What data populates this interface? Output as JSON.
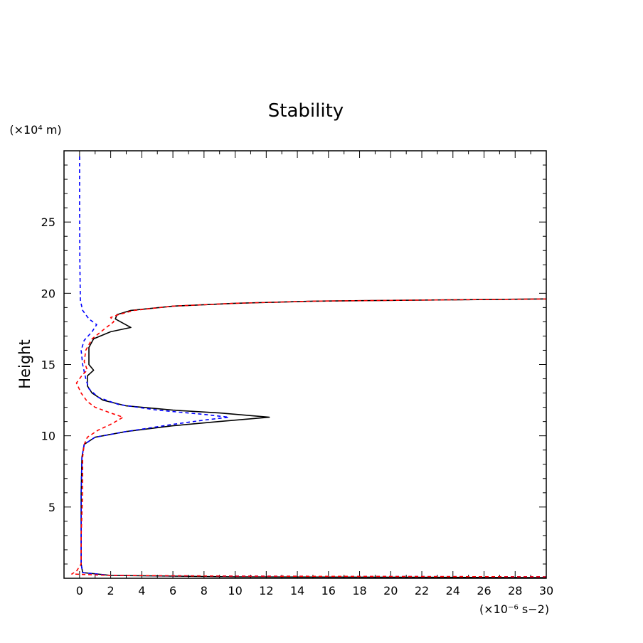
{
  "chart_data": {
    "type": "line",
    "title": "Stability",
    "xlabel": "",
    "ylabel": "Height",
    "x_unit_label": "(×10⁻⁶ s−2)",
    "y_unit_label": "(×10⁴ m)",
    "xlim": [
      -1,
      30
    ],
    "ylim": [
      0,
      30
    ],
    "xticks": [
      0,
      2,
      4,
      6,
      8,
      10,
      12,
      14,
      16,
      18,
      20,
      22,
      24,
      26,
      28,
      30
    ],
    "yticks": [
      5,
      10,
      15,
      20,
      25
    ],
    "grid": false,
    "legend": "none",
    "series": [
      {
        "color": "#000000",
        "dash": "solid",
        "points": [
          [
            30,
            0.05
          ],
          [
            10,
            0.1
          ],
          [
            2,
            0.2
          ],
          [
            0.2,
            0.4
          ],
          [
            0.1,
            1
          ],
          [
            0.1,
            3
          ],
          [
            0.1,
            6
          ],
          [
            0.15,
            8.5
          ],
          [
            0.3,
            9.4
          ],
          [
            1,
            9.9
          ],
          [
            3,
            10.3
          ],
          [
            6,
            10.7
          ],
          [
            9,
            11
          ],
          [
            12.2,
            11.3
          ],
          [
            9,
            11.6
          ],
          [
            6,
            11.8
          ],
          [
            3,
            12.1
          ],
          [
            1.5,
            12.5
          ],
          [
            0.8,
            13
          ],
          [
            0.5,
            13.5
          ],
          [
            0.5,
            14.2
          ],
          [
            0.9,
            14.6
          ],
          [
            0.6,
            15.0
          ],
          [
            0.6,
            16.2
          ],
          [
            0.9,
            16.8
          ],
          [
            2.0,
            17.3
          ],
          [
            3.3,
            17.6
          ],
          [
            2.3,
            18.2
          ],
          [
            2.4,
            18.5
          ],
          [
            3.3,
            18.8
          ],
          [
            6,
            19.1
          ],
          [
            10,
            19.3
          ],
          [
            15,
            19.45
          ],
          [
            20,
            19.5
          ],
          [
            25,
            19.55
          ],
          [
            30,
            19.6
          ]
        ]
      },
      {
        "color": "#0000ff",
        "dash": "dashed",
        "points": [
          [
            30,
            0.1
          ],
          [
            10,
            0.15
          ],
          [
            2,
            0.2
          ],
          [
            0.2,
            0.4
          ],
          [
            0.1,
            1
          ],
          [
            0.1,
            3
          ],
          [
            0.1,
            6
          ],
          [
            0.15,
            8.5
          ],
          [
            0.3,
            9.4
          ],
          [
            1,
            9.9
          ],
          [
            3,
            10.3
          ],
          [
            6,
            10.8
          ],
          [
            8,
            11.1
          ],
          [
            9.6,
            11.3
          ],
          [
            8,
            11.5
          ],
          [
            5,
            11.8
          ],
          [
            2.5,
            12.2
          ],
          [
            1.2,
            12.7
          ],
          [
            0.6,
            13.3
          ],
          [
            0.4,
            14
          ],
          [
            0.2,
            15
          ],
          [
            0.1,
            16
          ],
          [
            0.3,
            16.7
          ],
          [
            0.8,
            17.3
          ],
          [
            1.1,
            17.8
          ],
          [
            0.6,
            18.2
          ],
          [
            0.2,
            18.8
          ],
          [
            0.05,
            19.5
          ],
          [
            0.02,
            22
          ],
          [
            0,
            26
          ],
          [
            0,
            29.7
          ]
        ]
      },
      {
        "color": "#ff0000",
        "dash": "dashed",
        "points": [
          [
            30,
            0.1
          ],
          [
            10,
            0.15
          ],
          [
            2,
            0.2
          ],
          [
            -0.5,
            0.3
          ],
          [
            -0.2,
            0.5
          ],
          [
            0.1,
            1
          ],
          [
            0.1,
            3
          ],
          [
            0.2,
            6
          ],
          [
            0.2,
            8.5
          ],
          [
            0.3,
            9.4
          ],
          [
            0.5,
            9.9
          ],
          [
            1.2,
            10.4
          ],
          [
            2.0,
            10.8
          ],
          [
            2.8,
            11.3
          ],
          [
            2.0,
            11.6
          ],
          [
            1.0,
            12.0
          ],
          [
            0.5,
            12.4
          ],
          [
            0.1,
            13
          ],
          [
            -0.2,
            13.7
          ],
          [
            0.2,
            14.3
          ],
          [
            0.5,
            14.6
          ],
          [
            0.3,
            15.2
          ],
          [
            0.4,
            16.0
          ],
          [
            0.8,
            16.8
          ],
          [
            1.6,
            17.5
          ],
          [
            2.2,
            18.0
          ],
          [
            2.0,
            18.3
          ],
          [
            2.5,
            18.5
          ],
          [
            3.5,
            18.8
          ],
          [
            6,
            19.1
          ],
          [
            10,
            19.3
          ],
          [
            15,
            19.45
          ],
          [
            20,
            19.5
          ],
          [
            25,
            19.55
          ],
          [
            30,
            19.6
          ]
        ]
      }
    ]
  }
}
